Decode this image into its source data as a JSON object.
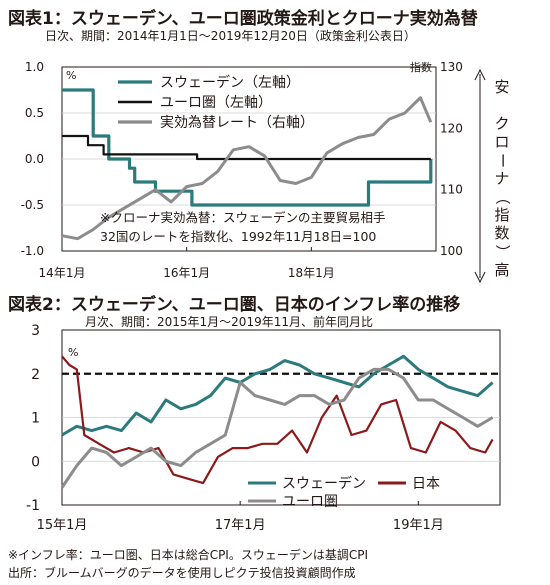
{
  "chart_data": [
    {
      "type": "line",
      "title": "図表1：スウェーデン、ユーロ圏政策金利とクローナ実効為替",
      "subtitle": "日次、期間：2014年1月1日～2019年12月20日（政策金利公表日）",
      "left_axis": {
        "unit": "%",
        "ylim": [
          -1.0,
          1.0
        ],
        "ticks": [
          {
            "v": 1.0,
            "label": "1.0"
          },
          {
            "v": 0.5,
            "label": "0.5"
          },
          {
            "v": 0.0,
            "label": "0.0"
          },
          {
            "v": -0.5,
            "label": "-0.5"
          },
          {
            "v": -1.0,
            "label": "-1.0"
          }
        ]
      },
      "right_axis": {
        "unit": "指数",
        "ylim": [
          100,
          130
        ],
        "ticks": [
          100,
          110,
          120,
          130
        ]
      },
      "right_note": {
        "top": "安",
        "middle": "クローナ（指数）",
        "bottom": "高"
      },
      "xlim": [
        "2014-01",
        "2020-01"
      ],
      "xticks": [
        {
          "x": "2014-01",
          "label": "14年1月"
        },
        {
          "x": "2016-01",
          "label": "16年1月"
        },
        {
          "x": "2018-01",
          "label": "18年1月"
        }
      ],
      "legend": [
        "スウェーデン（左軸）",
        "ユーロ圏（左軸）",
        "実効為替レート（右軸）"
      ],
      "note_lines": [
        "※クローナ実効為替：スウェーデンの主要貿易相手",
        "32国のレートを指数化、1992年11月18日=100"
      ],
      "series": [
        {
          "name": "スウェーデン（左軸）",
          "axis": "left",
          "color": "#2b7b7c",
          "step": true,
          "points": [
            [
              "2014-01",
              0.75
            ],
            [
              "2014-07",
              0.25
            ],
            [
              "2014-10",
              0.0
            ],
            [
              "2015-02",
              -0.1
            ],
            [
              "2015-03",
              -0.25
            ],
            [
              "2015-07",
              -0.35
            ],
            [
              "2016-02",
              -0.5
            ],
            [
              "2018-12",
              -0.25
            ],
            [
              "2019-12",
              0.0
            ]
          ]
        },
        {
          "name": "ユーロ圏（左軸）",
          "axis": "left",
          "color": "#111111",
          "step": true,
          "points": [
            [
              "2014-01",
              0.25
            ],
            [
              "2014-06",
              0.15
            ],
            [
              "2014-09",
              0.05
            ],
            [
              "2016-03",
              0.0
            ],
            [
              "2019-12",
              0.0
            ]
          ]
        },
        {
          "name": "実効為替レート（右軸）",
          "axis": "right",
          "color": "#8c8c8c",
          "step": false,
          "points": [
            [
              "2014-01",
              102.5
            ],
            [
              "2014-04",
              102.0
            ],
            [
              "2014-07",
              103.5
            ],
            [
              "2014-10",
              105.5
            ],
            [
              "2015-01",
              107.0
            ],
            [
              "2015-04",
              108.5
            ],
            [
              "2015-07",
              110.0
            ],
            [
              "2015-10",
              108.0
            ],
            [
              "2016-01",
              110.5
            ],
            [
              "2016-04",
              111.0
            ],
            [
              "2016-07",
              113.0
            ],
            [
              "2016-10",
              116.5
            ],
            [
              "2017-01",
              117.0
            ],
            [
              "2017-04",
              115.5
            ],
            [
              "2017-07",
              111.5
            ],
            [
              "2017-10",
              111.0
            ],
            [
              "2018-01",
              112.0
            ],
            [
              "2018-04",
              116.0
            ],
            [
              "2018-07",
              117.5
            ],
            [
              "2018-10",
              118.5
            ],
            [
              "2019-01",
              119.0
            ],
            [
              "2019-04",
              121.5
            ],
            [
              "2019-07",
              122.5
            ],
            [
              "2019-10",
              125.0
            ],
            [
              "2019-12",
              121.0
            ]
          ]
        }
      ]
    },
    {
      "type": "line",
      "title": "図表2：スウェーデン、ユーロ圏、日本のインフレ率の推移",
      "subtitle": "月次、期間：2015年1月～2019年11月、前年同月比",
      "axis": {
        "unit": "%",
        "ylim": [
          -1,
          3
        ],
        "ticks": [
          -1,
          0,
          1,
          2,
          3
        ]
      },
      "xlim": [
        "2015-01",
        "2019-12"
      ],
      "xticks": [
        {
          "x": "2015-01",
          "label": "15年1月"
        },
        {
          "x": "2017-01",
          "label": "17年1月"
        },
        {
          "x": "2019-01",
          "label": "19年1月"
        }
      ],
      "reference_line": 2,
      "legend": [
        "スウェーデン",
        "日本",
        "ユーロ圏"
      ],
      "series": [
        {
          "name": "スウェーデン",
          "color": "#2b7b7c",
          "points": [
            [
              "2015-01",
              0.6
            ],
            [
              "2015-03",
              0.8
            ],
            [
              "2015-05",
              0.7
            ],
            [
              "2015-07",
              0.8
            ],
            [
              "2015-09",
              0.7
            ],
            [
              "2015-11",
              1.1
            ],
            [
              "2016-01",
              0.9
            ],
            [
              "2016-03",
              1.4
            ],
            [
              "2016-05",
              1.2
            ],
            [
              "2016-07",
              1.3
            ],
            [
              "2016-09",
              1.5
            ],
            [
              "2016-11",
              1.9
            ],
            [
              "2017-01",
              1.8
            ],
            [
              "2017-03",
              2.0
            ],
            [
              "2017-05",
              2.1
            ],
            [
              "2017-07",
              2.3
            ],
            [
              "2017-09",
              2.2
            ],
            [
              "2017-11",
              2.0
            ],
            [
              "2018-01",
              1.9
            ],
            [
              "2018-03",
              1.8
            ],
            [
              "2018-05",
              1.7
            ],
            [
              "2018-07",
              2.0
            ],
            [
              "2018-09",
              2.2
            ],
            [
              "2018-11",
              2.4
            ],
            [
              "2019-01",
              2.1
            ],
            [
              "2019-03",
              1.9
            ],
            [
              "2019-05",
              1.7
            ],
            [
              "2019-07",
              1.6
            ],
            [
              "2019-09",
              1.5
            ],
            [
              "2019-11",
              1.8
            ]
          ]
        },
        {
          "name": "日本",
          "color": "#8b1a1a",
          "points": [
            [
              "2015-01",
              2.4
            ],
            [
              "2015-02",
              2.2
            ],
            [
              "2015-03",
              2.1
            ],
            [
              "2015-04",
              0.6
            ],
            [
              "2015-06",
              0.4
            ],
            [
              "2015-08",
              0.2
            ],
            [
              "2015-10",
              0.3
            ],
            [
              "2015-12",
              0.2
            ],
            [
              "2016-02",
              0.3
            ],
            [
              "2016-04",
              -0.3
            ],
            [
              "2016-06",
              -0.4
            ],
            [
              "2016-08",
              -0.5
            ],
            [
              "2016-10",
              0.1
            ],
            [
              "2016-12",
              0.3
            ],
            [
              "2017-02",
              0.3
            ],
            [
              "2017-04",
              0.4
            ],
            [
              "2017-06",
              0.4
            ],
            [
              "2017-08",
              0.7
            ],
            [
              "2017-10",
              0.2
            ],
            [
              "2017-12",
              1.0
            ],
            [
              "2018-02",
              1.5
            ],
            [
              "2018-04",
              0.6
            ],
            [
              "2018-06",
              0.7
            ],
            [
              "2018-08",
              1.3
            ],
            [
              "2018-10",
              1.4
            ],
            [
              "2018-12",
              0.3
            ],
            [
              "2019-02",
              0.2
            ],
            [
              "2019-04",
              0.9
            ],
            [
              "2019-06",
              0.7
            ],
            [
              "2019-08",
              0.3
            ],
            [
              "2019-10",
              0.2
            ],
            [
              "2019-11",
              0.5
            ]
          ]
        },
        {
          "name": "ユーロ圏",
          "color": "#8c8c8c",
          "points": [
            [
              "2015-01",
              -0.6
            ],
            [
              "2015-03",
              -0.1
            ],
            [
              "2015-05",
              0.3
            ],
            [
              "2015-07",
              0.2
            ],
            [
              "2015-09",
              -0.1
            ],
            [
              "2015-11",
              0.1
            ],
            [
              "2016-01",
              0.3
            ],
            [
              "2016-03",
              0.0
            ],
            [
              "2016-05",
              -0.1
            ],
            [
              "2016-07",
              0.2
            ],
            [
              "2016-09",
              0.4
            ],
            [
              "2016-11",
              0.6
            ],
            [
              "2017-01",
              1.8
            ],
            [
              "2017-03",
              1.5
            ],
            [
              "2017-05",
              1.4
            ],
            [
              "2017-07",
              1.3
            ],
            [
              "2017-09",
              1.5
            ],
            [
              "2017-11",
              1.5
            ],
            [
              "2018-01",
              1.3
            ],
            [
              "2018-03",
              1.4
            ],
            [
              "2018-05",
              1.9
            ],
            [
              "2018-07",
              2.1
            ],
            [
              "2018-09",
              2.1
            ],
            [
              "2018-11",
              1.9
            ],
            [
              "2019-01",
              1.4
            ],
            [
              "2019-03",
              1.4
            ],
            [
              "2019-05",
              1.2
            ],
            [
              "2019-07",
              1.0
            ],
            [
              "2019-09",
              0.8
            ],
            [
              "2019-11",
              1.0
            ]
          ]
        }
      ]
    }
  ],
  "footnotes": [
    "※インフレ率：ユーロ圏、日本は総合CPI。スウェーデンは基調CPI",
    "出所：ブルームバーグのデータを使用しピクテ投信投資顧問作成"
  ]
}
